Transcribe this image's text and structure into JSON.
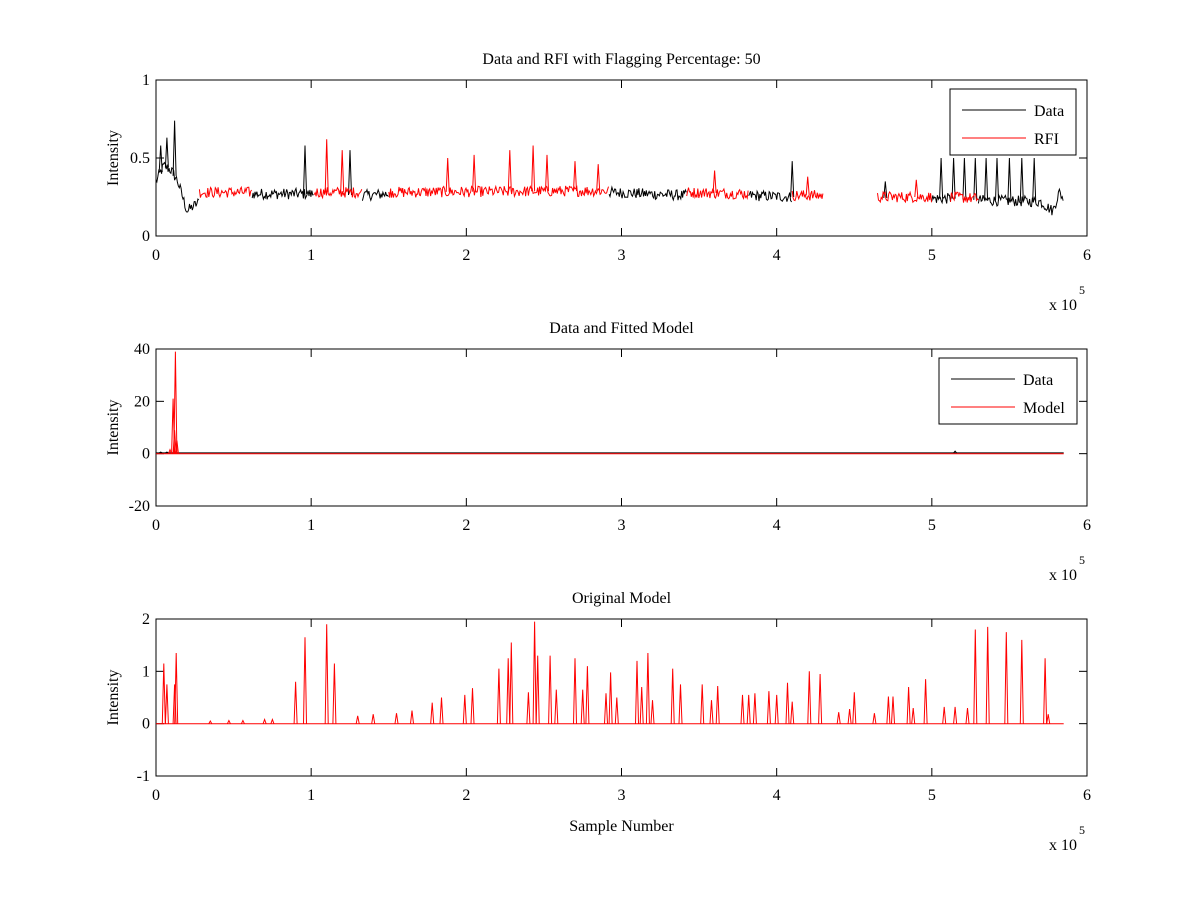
{
  "figure": {
    "background": "#ffffff",
    "colors": {
      "data": "#000000",
      "rfi": "#ff0000",
      "model": "#ff0000",
      "axis": "#000000"
    }
  },
  "chart_data": [
    {
      "type": "line",
      "title": "Data and RFI with Flagging Percentage: 50",
      "xlabel": "",
      "ylabel": "Intensity",
      "xlim": [
        0,
        600000
      ],
      "ylim": [
        0,
        1
      ],
      "x_ticks": [
        "0",
        "1",
        "2",
        "3",
        "4",
        "5",
        "6"
      ],
      "y_ticks": [
        "0",
        "0.5",
        "1"
      ],
      "x_multiplier": {
        "base": "x 10",
        "exponent": "5"
      },
      "grid": false,
      "legend": {
        "placement": "top-right",
        "entries": [
          "Data",
          "RFI"
        ]
      },
      "series": [
        {
          "name": "Data",
          "color": "#000000",
          "segments": [
            [
              0,
              28000
            ],
            [
              62000,
              102000
            ],
            [
              133000,
              150000
            ],
            [
              292000,
              342000
            ],
            [
              382000,
              410000
            ],
            [
              500000,
              512000
            ],
            [
              530000,
              585000
            ]
          ],
          "baseline": [
            [
              0,
              0.35
            ],
            [
              5000,
              0.45
            ],
            [
              10000,
              0.42
            ],
            [
              14000,
              0.35
            ],
            [
              20000,
              0.16
            ],
            [
              28000,
              0.22
            ],
            [
              62000,
              0.27
            ],
            [
              102000,
              0.27
            ],
            [
              133000,
              0.26
            ],
            [
              150000,
              0.27
            ],
            [
              292000,
              0.28
            ],
            [
              342000,
              0.26
            ],
            [
              382000,
              0.26
            ],
            [
              410000,
              0.25
            ],
            [
              500000,
              0.24
            ],
            [
              512000,
              0.24
            ],
            [
              530000,
              0.23
            ],
            [
              570000,
              0.22
            ],
            [
              578000,
              0.16
            ],
            [
              582000,
              0.28
            ],
            [
              585000,
              0.24
            ]
          ],
          "spikes": [
            [
              3000,
              0.58
            ],
            [
              7000,
              0.63
            ],
            [
              12000,
              0.74
            ],
            [
              96000,
              0.58
            ],
            [
              125000,
              0.55
            ],
            [
              410000,
              0.48
            ],
            [
              470000,
              0.35
            ],
            [
              506000,
              0.5
            ],
            [
              514000,
              0.5
            ],
            [
              521000,
              0.5
            ],
            [
              528000,
              0.5
            ],
            [
              535000,
              0.5
            ],
            [
              542000,
              0.5
            ],
            [
              550000,
              0.5
            ],
            [
              558000,
              0.5
            ],
            [
              566000,
              0.5
            ]
          ]
        },
        {
          "name": "RFI",
          "color": "#ff0000",
          "segments": [
            [
              28000,
              62000
            ],
            [
              102000,
              133000
            ],
            [
              150000,
              292000
            ],
            [
              342000,
              382000
            ],
            [
              410000,
              430000
            ],
            [
              465000,
              500000
            ],
            [
              512000,
              530000
            ]
          ],
          "baseline": [
            [
              28000,
              0.28
            ],
            [
              62000,
              0.28
            ],
            [
              102000,
              0.28
            ],
            [
              133000,
              0.28
            ],
            [
              150000,
              0.28
            ],
            [
              292000,
              0.29
            ],
            [
              342000,
              0.28
            ],
            [
              382000,
              0.27
            ],
            [
              410000,
              0.26
            ],
            [
              430000,
              0.26
            ],
            [
              465000,
              0.25
            ],
            [
              500000,
              0.25
            ],
            [
              512000,
              0.25
            ],
            [
              530000,
              0.24
            ]
          ],
          "spikes": [
            [
              110000,
              0.62
            ],
            [
              120000,
              0.55
            ],
            [
              188000,
              0.5
            ],
            [
              205000,
              0.52
            ],
            [
              228000,
              0.55
            ],
            [
              243000,
              0.58
            ],
            [
              252000,
              0.52
            ],
            [
              270000,
              0.48
            ],
            [
              285000,
              0.46
            ],
            [
              360000,
              0.42
            ],
            [
              420000,
              0.38
            ],
            [
              490000,
              0.36
            ]
          ]
        }
      ]
    },
    {
      "type": "line",
      "title": "Data and Fitted Model",
      "xlabel": "",
      "ylabel": "Intensity",
      "xlim": [
        0,
        600000
      ],
      "ylim": [
        -20,
        40
      ],
      "x_ticks": [
        "0",
        "1",
        "2",
        "3",
        "4",
        "5",
        "6"
      ],
      "y_ticks": [
        "-20",
        "0",
        "20",
        "40"
      ],
      "x_multiplier": {
        "base": "x 10",
        "exponent": "5"
      },
      "grid": false,
      "legend": {
        "placement": "top-right",
        "entries": [
          "Data",
          "Model"
        ]
      },
      "series": [
        {
          "name": "Data",
          "color": "#000000",
          "x_range": [
            0,
            585000
          ],
          "baseline": 0.3,
          "spikes": [
            [
              3000,
              0.6
            ],
            [
              7000,
              0.6
            ],
            [
              12000,
              0.7
            ],
            [
              515000,
              1.0
            ]
          ]
        },
        {
          "name": "Model",
          "color": "#ff0000",
          "x_range": [
            0,
            585000
          ],
          "baseline": 0.0,
          "spikes": [
            [
              9000,
              1.5
            ],
            [
              11000,
              21
            ],
            [
              12000,
              9
            ],
            [
              12500,
              39
            ],
            [
              13500,
              5
            ]
          ]
        }
      ]
    },
    {
      "type": "line",
      "title": "Original Model",
      "xlabel": "Sample Number",
      "ylabel": "Intensity",
      "xlim": [
        0,
        600000
      ],
      "ylim": [
        -1,
        2
      ],
      "x_ticks": [
        "0",
        "1",
        "2",
        "3",
        "4",
        "5",
        "6"
      ],
      "y_ticks": [
        "-1",
        "0",
        "1",
        "2"
      ],
      "x_multiplier": {
        "base": "x 10",
        "exponent": "5"
      },
      "grid": false,
      "legend": null,
      "series": [
        {
          "color": "#ff0000",
          "x_range": [
            0,
            585000
          ],
          "baseline": 0.0,
          "spikes": [
            [
              5000,
              1.15
            ],
            [
              7000,
              0.75
            ],
            [
              12000,
              0.75
            ],
            [
              13000,
              1.35
            ],
            [
              35000,
              0.05
            ],
            [
              47000,
              0.06
            ],
            [
              56000,
              0.06
            ],
            [
              70000,
              0.08
            ],
            [
              75000,
              0.08
            ],
            [
              90000,
              0.8
            ],
            [
              96000,
              1.65
            ],
            [
              110000,
              1.9
            ],
            [
              115000,
              1.15
            ],
            [
              130000,
              0.15
            ],
            [
              140000,
              0.18
            ],
            [
              155000,
              0.2
            ],
            [
              165000,
              0.25
            ],
            [
              178000,
              0.4
            ],
            [
              184000,
              0.5
            ],
            [
              199000,
              0.55
            ],
            [
              204000,
              0.68
            ],
            [
              221000,
              1.05
            ],
            [
              227000,
              1.25
            ],
            [
              229000,
              1.55
            ],
            [
              240000,
              0.6
            ],
            [
              244000,
              1.95
            ],
            [
              246000,
              1.3
            ],
            [
              254000,
              1.3
            ],
            [
              258000,
              0.65
            ],
            [
              270000,
              1.25
            ],
            [
              275000,
              0.65
            ],
            [
              278000,
              1.1
            ],
            [
              290000,
              0.58
            ],
            [
              293000,
              0.98
            ],
            [
              297000,
              0.5
            ],
            [
              310000,
              1.2
            ],
            [
              313000,
              0.7
            ],
            [
              317000,
              1.35
            ],
            [
              320000,
              0.45
            ],
            [
              333000,
              1.05
            ],
            [
              338000,
              0.75
            ],
            [
              352000,
              0.75
            ],
            [
              358000,
              0.45
            ],
            [
              362000,
              0.72
            ],
            [
              378000,
              0.55
            ],
            [
              382000,
              0.55
            ],
            [
              386000,
              0.58
            ],
            [
              395000,
              0.62
            ],
            [
              400000,
              0.55
            ],
            [
              407000,
              0.78
            ],
            [
              410000,
              0.42
            ],
            [
              421000,
              1.0
            ],
            [
              428000,
              0.95
            ],
            [
              440000,
              0.22
            ],
            [
              447000,
              0.28
            ],
            [
              450000,
              0.6
            ],
            [
              463000,
              0.2
            ],
            [
              472000,
              0.52
            ],
            [
              475000,
              0.52
            ],
            [
              485000,
              0.7
            ],
            [
              488000,
              0.3
            ],
            [
              496000,
              0.85
            ],
            [
              508000,
              0.32
            ],
            [
              515000,
              0.32
            ],
            [
              523000,
              0.3
            ],
            [
              528000,
              1.8
            ],
            [
              536000,
              1.85
            ],
            [
              548000,
              1.75
            ],
            [
              558000,
              1.6
            ],
            [
              573000,
              1.25
            ],
            [
              575000,
              0.18
            ]
          ]
        }
      ]
    }
  ]
}
